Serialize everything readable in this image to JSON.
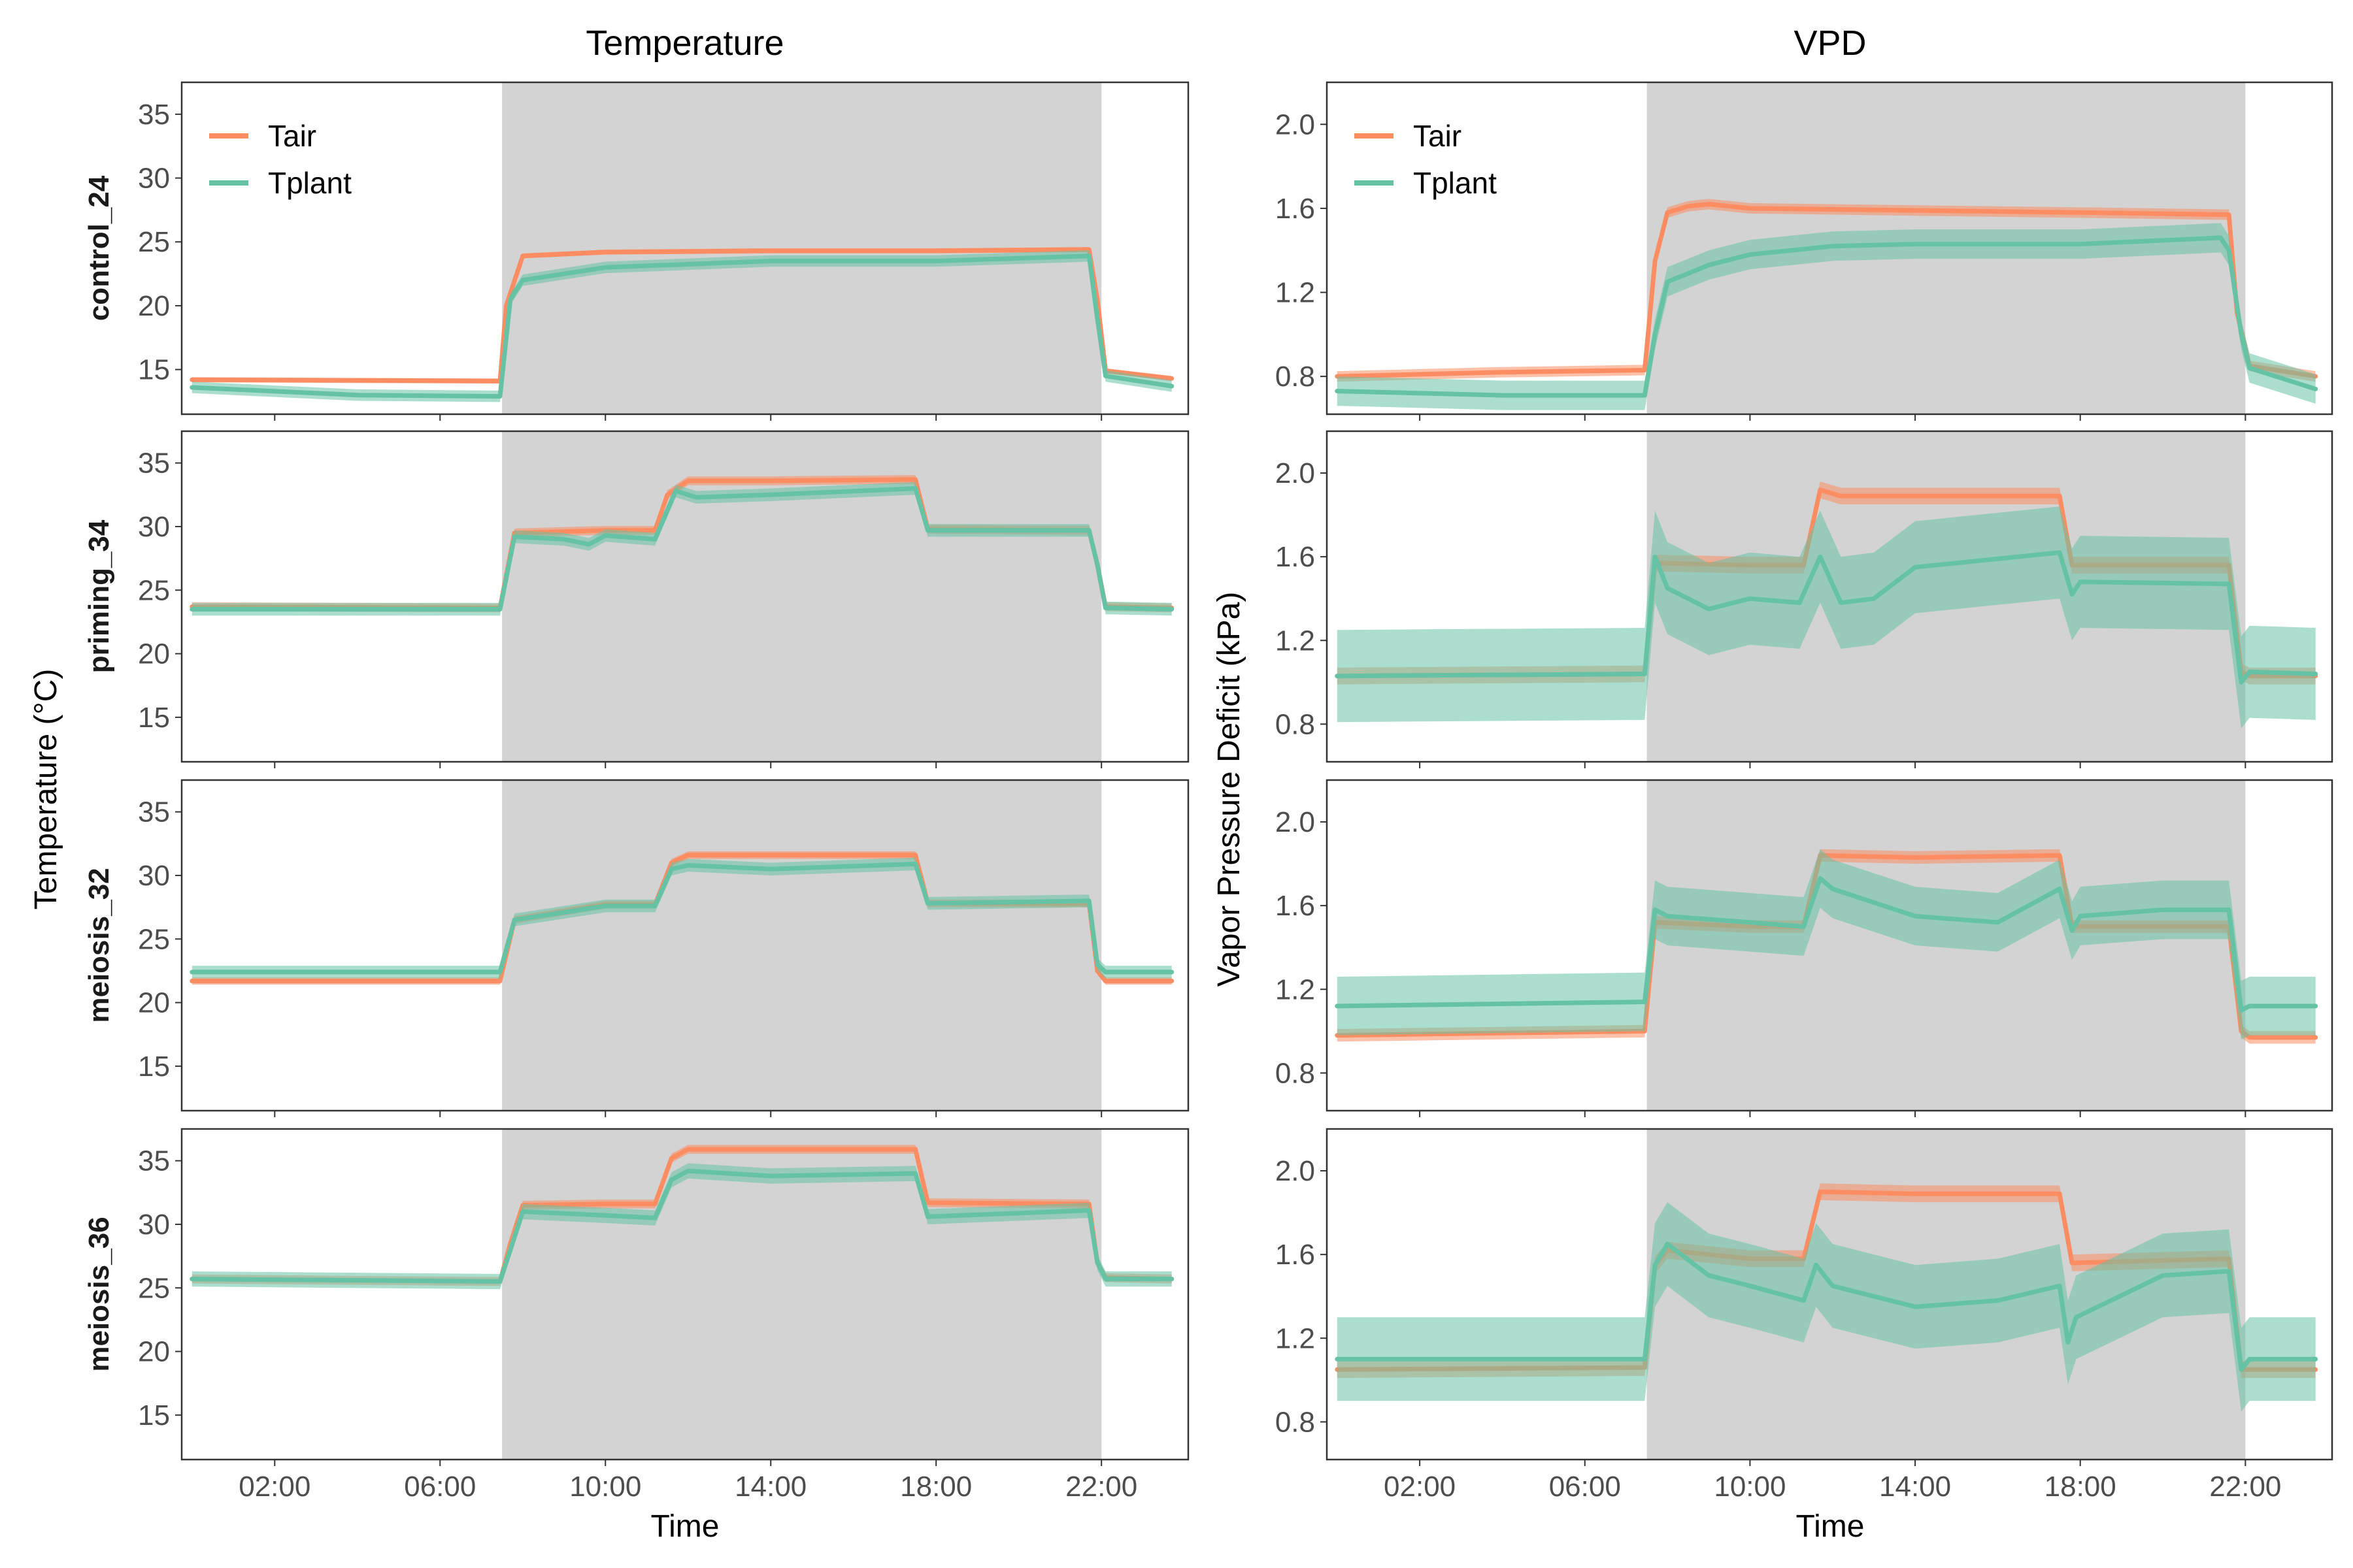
{
  "figure": {
    "col_titles": [
      "Temperature",
      "VPD"
    ],
    "row_labels": [
      "control_24",
      "priming_34",
      "meiosis_32",
      "meiosis_36"
    ],
    "x_axis_title": "Time",
    "y_axis_titles": [
      "Temperature (°C)",
      "Vapor Pressure Deficit (kPa)"
    ],
    "x_tick_labels": [
      "02:00",
      "06:00",
      "10:00",
      "14:00",
      "18:00",
      "22:00"
    ],
    "temp_tick_labels": [
      "15",
      "20",
      "25",
      "30",
      "35"
    ],
    "vpd_tick_labels": [
      "0.8",
      "1.2",
      "1.6",
      "2.0"
    ],
    "legend": [
      "Tair",
      "Tplant"
    ],
    "colors": {
      "Tair": "#FC8D62",
      "Tplant": "#66C2A5",
      "light_period": "#D3D3D3",
      "panel_border": "#333333"
    }
  },
  "chart_data": {
    "type": "line",
    "x_unit": "hours (time of day)",
    "xlim": [
      -0.25,
      24.1
    ],
    "x_ticks": [
      2,
      6,
      10,
      14,
      18,
      22
    ],
    "light_period": [
      7.5,
      22
    ],
    "facets": [
      {
        "row": "control_24",
        "variable": "Temperature",
        "ylim": [
          11.5,
          37.5
        ],
        "series": [
          {
            "name": "Tair",
            "x": [
              0,
              7.45,
              7.6,
              8,
              10,
              14,
              18,
              21.7,
              21.9,
              22.1,
              23.7
            ],
            "y": [
              14.2,
              14.1,
              20.0,
              23.9,
              24.2,
              24.3,
              24.3,
              24.4,
              20.5,
              14.9,
              14.3
            ],
            "band": 0.2
          },
          {
            "name": "Tplant",
            "x": [
              0,
              4,
              7.45,
              7.7,
              8,
              9,
              10,
              14,
              18,
              21.7,
              21.9,
              22.1,
              23.7
            ],
            "y": [
              13.6,
              13.0,
              12.9,
              20.5,
              22.0,
              22.5,
              23.0,
              23.5,
              23.5,
              23.9,
              19.0,
              14.5,
              13.7
            ],
            "band": 0.45
          }
        ]
      },
      {
        "row": "control_24",
        "variable": "VPD",
        "ylim": [
          0.62,
          2.2
        ],
        "series": [
          {
            "name": "Tair",
            "x": [
              0,
              4,
              7.45,
              7.7,
              8,
              8.5,
              9,
              10,
              14,
              18,
              21.6,
              21.8,
              22.1,
              23.7
            ],
            "y": [
              0.8,
              0.82,
              0.83,
              1.35,
              1.58,
              1.61,
              1.62,
              1.6,
              1.59,
              1.58,
              1.57,
              1.1,
              0.85,
              0.8
            ],
            "band": 0.025
          },
          {
            "name": "Tplant",
            "x": [
              0,
              4,
              7.45,
              7.7,
              8,
              9,
              10,
              12,
              14,
              18,
              21.4,
              21.6,
              21.9,
              22.1,
              23.7
            ],
            "y": [
              0.73,
              0.71,
              0.71,
              1.0,
              1.25,
              1.33,
              1.38,
              1.42,
              1.43,
              1.43,
              1.46,
              1.4,
              1.0,
              0.84,
              0.74
            ],
            "band": 0.07
          }
        ]
      },
      {
        "row": "priming_34",
        "variable": "Temperature",
        "ylim": [
          11.5,
          37.5
        ],
        "series": [
          {
            "name": "Tair",
            "x": [
              0,
              7.45,
              7.8,
              10,
              11.2,
              11.5,
              12,
              14,
              17.5,
              17.8,
              21.7,
              21.9,
              22.1,
              23.7
            ],
            "y": [
              23.7,
              23.6,
              29.5,
              29.7,
              29.7,
              32.5,
              33.6,
              33.6,
              33.7,
              29.8,
              29.7,
              27.0,
              23.7,
              23.6
            ],
            "band": 0.35
          },
          {
            "name": "Tplant",
            "x": [
              0,
              7.45,
              7.8,
              9,
              9.6,
              10,
              11.2,
              11.7,
              12.2,
              14,
              17.5,
              17.8,
              21.7,
              21.9,
              22.1,
              23.7
            ],
            "y": [
              23.5,
              23.5,
              29.2,
              29.0,
              28.6,
              29.3,
              29.0,
              32.8,
              32.3,
              32.5,
              33.0,
              29.7,
              29.7,
              27.0,
              23.6,
              23.5
            ],
            "band": 0.5
          }
        ]
      },
      {
        "row": "priming_34",
        "variable": "VPD",
        "ylim": [
          0.62,
          2.2
        ],
        "series": [
          {
            "name": "Tair",
            "x": [
              0,
              7.45,
              7.7,
              10,
              11.3,
              11.7,
              12.2,
              14,
              17.5,
              17.8,
              21.6,
              21.9,
              22.1,
              23.7
            ],
            "y": [
              1.03,
              1.04,
              1.57,
              1.56,
              1.56,
              1.92,
              1.89,
              1.89,
              1.89,
              1.56,
              1.56,
              1.05,
              1.03,
              1.03
            ],
            "band": 0.04
          },
          {
            "name": "Tplant",
            "x": [
              0,
              7.45,
              7.7,
              8,
              9,
              10,
              11.2,
              11.7,
              12.2,
              13,
              14,
              17.5,
              17.8,
              18,
              21.6,
              21.9,
              22.1,
              23.7
            ],
            "y": [
              1.03,
              1.04,
              1.6,
              1.45,
              1.35,
              1.4,
              1.38,
              1.6,
              1.38,
              1.4,
              1.55,
              1.62,
              1.42,
              1.48,
              1.47,
              1.0,
              1.05,
              1.04
            ],
            "band": 0.22
          }
        ]
      },
      {
        "row": "meiosis_32",
        "variable": "Temperature",
        "ylim": [
          11.5,
          37.5
        ],
        "series": [
          {
            "name": "Tair",
            "x": [
              0,
              7.45,
              7.8,
              10,
              11.2,
              11.6,
              12,
              14,
              17.5,
              17.8,
              21.7,
              21.9,
              22.1,
              23.7
            ],
            "y": [
              21.7,
              21.7,
              26.5,
              27.7,
              27.7,
              31.0,
              31.6,
              31.6,
              31.6,
              27.8,
              27.8,
              22.5,
              21.7,
              21.7
            ],
            "band": 0.3
          },
          {
            "name": "Tplant",
            "x": [
              0,
              7.45,
              7.8,
              10,
              11.2,
              11.6,
              12,
              14,
              17.5,
              17.8,
              21.7,
              21.9,
              22.1,
              23.7
            ],
            "y": [
              22.4,
              22.4,
              26.5,
              27.6,
              27.6,
              30.5,
              30.8,
              30.5,
              30.9,
              27.8,
              28.0,
              23.0,
              22.4,
              22.4
            ],
            "band": 0.5
          }
        ]
      },
      {
        "row": "meiosis_32",
        "variable": "VPD",
        "ylim": [
          0.62,
          2.2
        ],
        "series": [
          {
            "name": "Tair",
            "x": [
              0,
              7.45,
              7.7,
              10,
              11.3,
              11.7,
              14,
              17.5,
              17.8,
              21.6,
              21.9,
              22.1,
              23.7
            ],
            "y": [
              0.98,
              1.0,
              1.52,
              1.5,
              1.5,
              1.84,
              1.83,
              1.84,
              1.5,
              1.5,
              1.0,
              0.97,
              0.97
            ],
            "band": 0.03
          },
          {
            "name": "Tplant",
            "x": [
              0,
              7.45,
              7.7,
              8,
              10,
              11.3,
              11.7,
              12,
              14,
              16,
              17.5,
              17.8,
              18,
              20,
              21.6,
              21.9,
              22.1,
              23.7
            ],
            "y": [
              1.12,
              1.14,
              1.58,
              1.55,
              1.52,
              1.5,
              1.73,
              1.68,
              1.55,
              1.52,
              1.68,
              1.48,
              1.55,
              1.58,
              1.58,
              1.1,
              1.12,
              1.12
            ],
            "band": 0.14
          }
        ]
      },
      {
        "row": "meiosis_36",
        "variable": "Temperature",
        "ylim": [
          11.5,
          37.5
        ],
        "series": [
          {
            "name": "Tair",
            "x": [
              0,
              7.45,
              7.7,
              8,
              10,
              11.2,
              11.6,
              12,
              14,
              17.5,
              17.8,
              21.7,
              21.9,
              22.1,
              23.7
            ],
            "y": [
              25.7,
              25.5,
              28.5,
              31.5,
              31.6,
              31.6,
              35.2,
              35.9,
              35.9,
              35.9,
              31.7,
              31.6,
              27.0,
              25.8,
              25.7
            ],
            "band": 0.35
          },
          {
            "name": "Tplant",
            "x": [
              0,
              7.45,
              7.7,
              8,
              10,
              11.2,
              11.6,
              12,
              14,
              17.5,
              17.8,
              21.7,
              21.9,
              22.1,
              23.7
            ],
            "y": [
              25.7,
              25.5,
              28.0,
              31.0,
              30.7,
              30.5,
              33.5,
              34.2,
              33.8,
              34.0,
              30.6,
              31.1,
              27.0,
              25.7,
              25.7
            ],
            "band": 0.6
          }
        ]
      },
      {
        "row": "meiosis_36",
        "variable": "VPD",
        "ylim": [
          0.62,
          2.2
        ],
        "series": [
          {
            "name": "Tair",
            "x": [
              0,
              7.45,
              7.7,
              8,
              10,
              11.3,
              11.7,
              14,
              17.5,
              17.8,
              21.6,
              21.9,
              22.1,
              23.7
            ],
            "y": [
              1.05,
              1.06,
              1.55,
              1.62,
              1.58,
              1.58,
              1.9,
              1.89,
              1.89,
              1.56,
              1.58,
              1.05,
              1.05,
              1.05
            ],
            "band": 0.04
          },
          {
            "name": "Tplant",
            "x": [
              0,
              7.45,
              7.7,
              8,
              9,
              10,
              11.3,
              11.6,
              12,
              14,
              16,
              17.5,
              17.7,
              17.9,
              20,
              21.6,
              21.9,
              22.1,
              23.7
            ],
            "y": [
              1.1,
              1.1,
              1.55,
              1.65,
              1.5,
              1.45,
              1.38,
              1.55,
              1.45,
              1.35,
              1.38,
              1.45,
              1.18,
              1.3,
              1.5,
              1.52,
              1.05,
              1.1,
              1.1
            ],
            "band": 0.2
          }
        ]
      }
    ]
  }
}
